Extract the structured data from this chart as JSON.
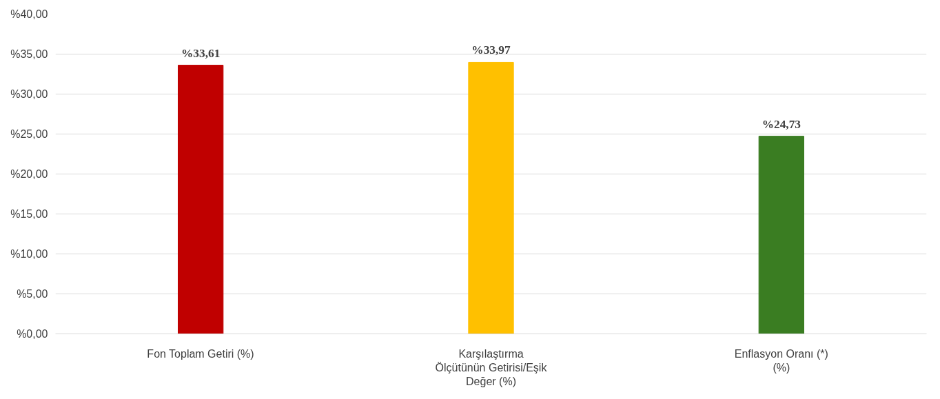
{
  "chart_data": {
    "type": "bar",
    "categories": [
      "Fon Toplam Getiri (%)",
      "Karşılaştırma\nÖlçütünün Getirisi/Eşik\nDeğer (%)",
      "Enflasyon Oranı (*)\n(%)"
    ],
    "values": [
      33.61,
      33.97,
      24.73
    ],
    "colors": [
      "#c00000",
      "#ffc000",
      "#3a7d22"
    ],
    "value_labels": [
      "%33,61",
      "%33,97",
      "%24,73"
    ],
    "ylim": [
      0,
      40
    ],
    "yticks": [
      {
        "value": 0,
        "label": "%0,00"
      },
      {
        "value": 5,
        "label": "%5,00"
      },
      {
        "value": 10,
        "label": "%10,00"
      },
      {
        "value": 15,
        "label": "%15,00"
      },
      {
        "value": 20,
        "label": "%20,00"
      },
      {
        "value": 25,
        "label": "%25,00"
      },
      {
        "value": 30,
        "label": "%30,00"
      },
      {
        "value": 35,
        "label": "%35,00"
      },
      {
        "value": 40,
        "label": "%40,00"
      }
    ],
    "grid": "y"
  }
}
